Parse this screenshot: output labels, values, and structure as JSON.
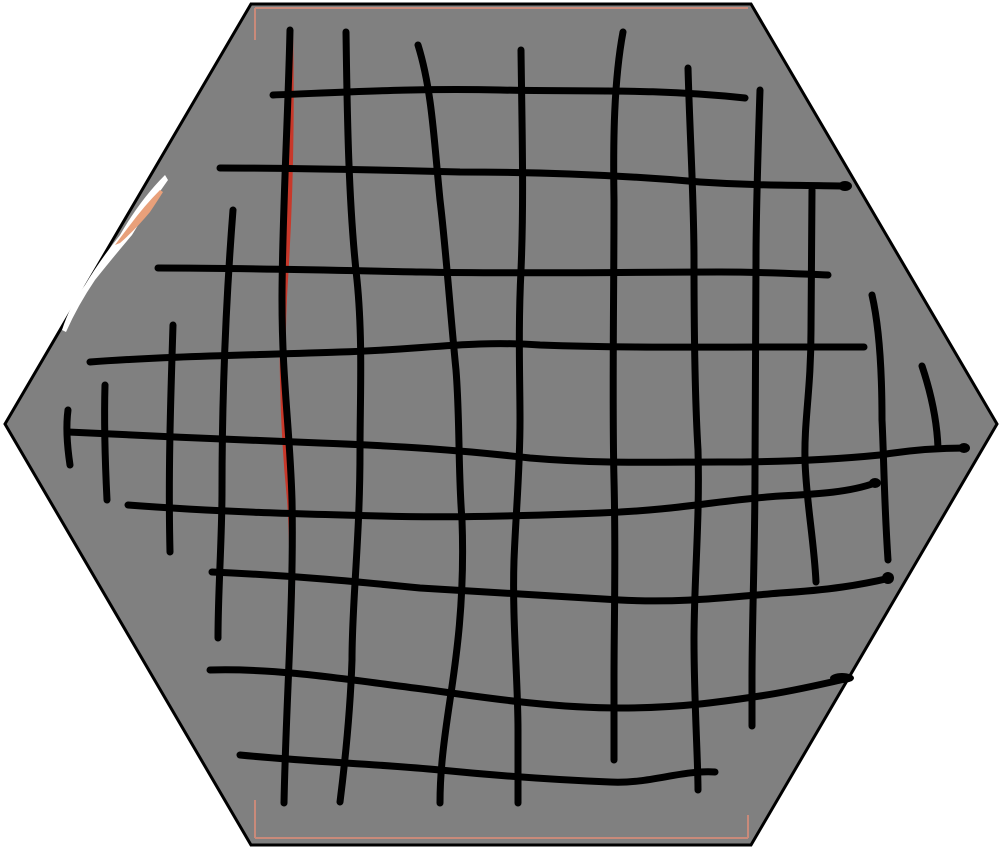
{
  "colors": {
    "background": "#ffffff",
    "hexagon_fill": "#808080",
    "hexagon_outline": "#000000",
    "grid_lines": "#000000",
    "red_accent": "#c8382a",
    "orange_accent": "#e8a07a",
    "scratch_white": "#ffffff"
  }
}
